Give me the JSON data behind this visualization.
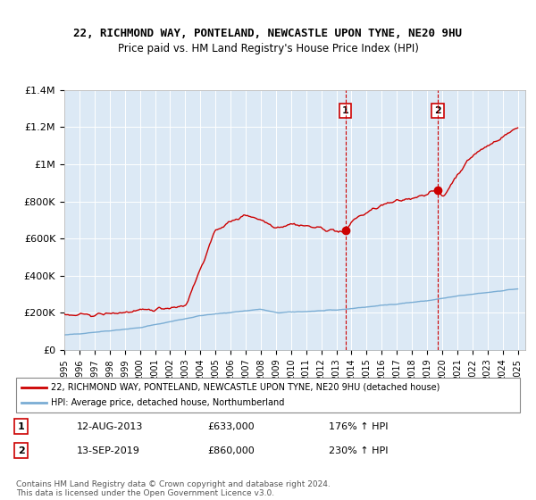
{
  "title_line1": "22, RICHMOND WAY, PONTELAND, NEWCASTLE UPON TYNE, NE20 9HU",
  "title_line2": "Price paid vs. HM Land Registry's House Price Index (HPI)",
  "bg_color": "#dce9f5",
  "plot_bg_color": "#dce9f5",
  "hpi_color": "#7aadd4",
  "price_color": "#cc0000",
  "x_start_year": 1995,
  "x_end_year": 2025,
  "y_min": 0,
  "y_max": 1400000,
  "y_ticks": [
    0,
    200000,
    400000,
    600000,
    800000,
    1000000,
    1200000,
    1400000
  ],
  "y_tick_labels": [
    "£0",
    "£200K",
    "£400K",
    "£600K",
    "£800K",
    "£1M",
    "£1.2M",
    "£1.4M"
  ],
  "marker1_year": 2013.6,
  "marker1_price": 633000,
  "marker1_label": "1",
  "marker1_date": "12-AUG-2013",
  "marker1_pct": "176%",
  "marker2_year": 2019.7,
  "marker2_price": 860000,
  "marker2_label": "2",
  "marker2_date": "13-SEP-2019",
  "marker2_pct": "230%",
  "legend_line1": "22, RICHMOND WAY, PONTELAND, NEWCASTLE UPON TYNE, NE20 9HU (detached house)",
  "legend_line2": "HPI: Average price, detached house, Northumberland",
  "footnote": "Contains HM Land Registry data © Crown copyright and database right 2024.\nThis data is licensed under the Open Government Licence v3.0."
}
